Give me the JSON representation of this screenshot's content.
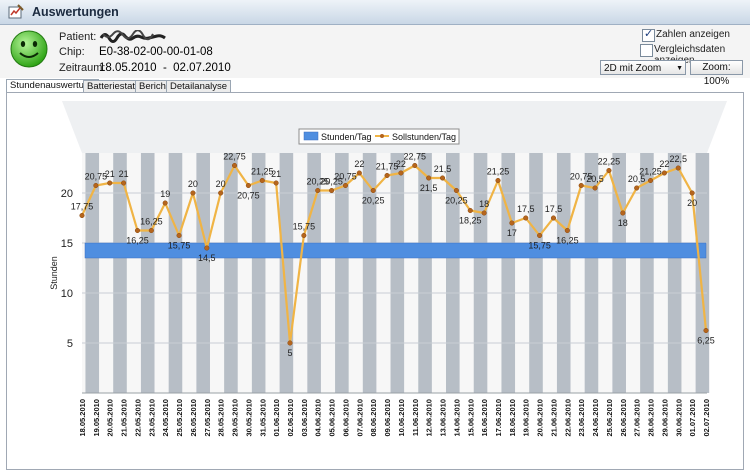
{
  "window": {
    "title": "Auswertungen"
  },
  "header": {
    "patient_label": "Patient:",
    "patient_value": "",
    "chip_label": "Chip:",
    "chip_value": "E0-38-02-00-00-01-08",
    "range_label": "Zeitraum:",
    "range_value": "18.05.2010  -  02.07.2010",
    "show_numbers_label": "Zahlen anzeigen",
    "show_numbers_checked": true,
    "compare_label": "Vergleichsdaten anzeigen",
    "compare_checked": false,
    "view_select": "2D mit Zoom",
    "zoom_button": "Zoom: 100%"
  },
  "tabs": [
    "Stundenauswertung",
    "Batteriestatus",
    "Bericht",
    "Detailanalyse"
  ],
  "active_tab": 0,
  "chart_data": {
    "type": "line",
    "ylabel": "Stunden",
    "xlabel": "",
    "ylim": [
      0,
      24
    ],
    "yticks": [
      5,
      10,
      15,
      20
    ],
    "legend": [
      "Stunden/Tag",
      "Sollstunden/Tag"
    ],
    "legend_position": "top-center",
    "target_band": [
      13.5,
      15
    ],
    "colors": {
      "line": "#f0b445",
      "point": "#b5651d",
      "band": "#4f8ee0",
      "bars": "#b7bec6"
    },
    "categories": [
      "18.05.2010",
      "19.05.2010",
      "20.05.2010",
      "21.05.2010",
      "22.05.2010",
      "23.05.2010",
      "24.05.2010",
      "25.05.2010",
      "26.05.2010",
      "27.05.2010",
      "28.05.2010",
      "29.05.2010",
      "30.05.2010",
      "31.05.2010",
      "01.06.2010",
      "02.06.2010",
      "03.06.2010",
      "04.06.2010",
      "05.06.2010",
      "06.06.2010",
      "07.06.2010",
      "08.06.2010",
      "09.06.2010",
      "10.06.2010",
      "11.06.2010",
      "12.06.2010",
      "13.06.2010",
      "14.06.2010",
      "15.06.2010",
      "16.06.2010",
      "17.06.2010",
      "18.06.2010",
      "19.06.2010",
      "20.06.2010",
      "21.06.2010",
      "22.06.2010",
      "23.06.2010",
      "24.06.2010",
      "25.06.2010",
      "26.06.2010",
      "27.06.2010",
      "28.06.2010",
      "29.06.2010",
      "30.06.2010",
      "01.07.2010",
      "02.07.2010"
    ],
    "series": [
      {
        "name": "Sollstunden/Tag",
        "values": [
          17.75,
          20.75,
          21,
          21,
          16.25,
          16.25,
          19,
          15.75,
          20,
          14.5,
          20,
          22.75,
          20.75,
          21.25,
          21,
          5,
          15.75,
          20.25,
          20.25,
          20.75,
          22,
          20.25,
          21.75,
          22,
          22.75,
          21.5,
          21.5,
          20.25,
          18.25,
          18,
          21.25,
          17,
          17.5,
          15.75,
          17.5,
          16.25,
          20.75,
          20.5,
          22.25,
          18,
          20.5,
          21.25,
          22,
          22.5,
          20,
          6.25
        ],
        "labels": [
          "17,75",
          "20,75",
          "21",
          "21",
          "16,25",
          "16,25",
          "19",
          "15,75",
          "20",
          "14,5",
          "20",
          "22,75",
          "20,75",
          "21,25",
          "21",
          "5",
          "15,75",
          "20,25",
          "20,25",
          "20,75",
          "22",
          "20,25",
          "21,75",
          "22",
          "22,75",
          "21,5",
          "21,5",
          "20,25",
          "18,25",
          "18",
          "21,25",
          "17",
          "17,5",
          "15,75",
          "17,5",
          "16,25",
          "20,75",
          "20,5",
          "22,25",
          "18",
          "20,5",
          "21,25",
          "22",
          "22,5",
          "20",
          "6,25"
        ]
      }
    ]
  }
}
